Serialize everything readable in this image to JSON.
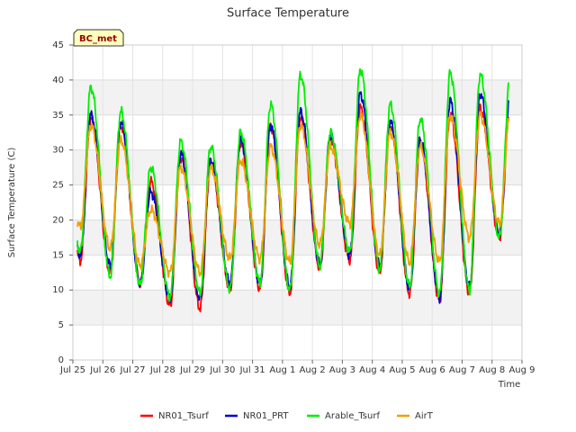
{
  "chart_data": {
    "type": "line",
    "title": "Surface Temperature",
    "xlabel": "Time",
    "ylabel": "Surface Temperature (C)",
    "badge": "BC_met",
    "xlim": [
      "2023-07-25",
      "2023-08-09"
    ],
    "ylim": [
      0,
      45
    ],
    "yticks": [
      0,
      5,
      10,
      15,
      20,
      25,
      30,
      35,
      40,
      45
    ],
    "xtick_labels": [
      "Jul 25",
      "Jul 26",
      "Jul 27",
      "Jul 28",
      "Jul 29",
      "Jul 30",
      "Jul 31",
      "Aug 1",
      "Aug 2",
      "Aug 3",
      "Aug 4",
      "Aug 5",
      "Aug 6",
      "Aug 7",
      "Aug 8",
      "Aug 9"
    ],
    "grid": true,
    "legend_position": "bottom",
    "days": [
      "Jul 25",
      "Jul 26",
      "Jul 27",
      "Jul 28",
      "Jul 29",
      "Jul 30",
      "Jul 31",
      "Aug 1",
      "Aug 2",
      "Aug 3",
      "Aug 4",
      "Aug 5",
      "Aug 6",
      "Aug 7",
      "Aug 8"
    ],
    "series": [
      {
        "name": "NR01_Tsurf",
        "color": "#ff0000",
        "daily_min": [
          14.2,
          12.5,
          11.0,
          7.8,
          7.4,
          10.2,
          10.2,
          9.6,
          13.2,
          14.3,
          12.6,
          9.5,
          8.5,
          9.6,
          17.5
        ],
        "daily_max": [
          34.5,
          33.5,
          25.5,
          29.0,
          28.0,
          31.0,
          33.5,
          34.5,
          31.5,
          36.0,
          33.5,
          31.0,
          35.0,
          36.0
        ]
      },
      {
        "name": "NR01_PRT",
        "color": "#0000cc",
        "daily_min": [
          15.0,
          13.5,
          11.0,
          8.8,
          8.8,
          11.0,
          11.0,
          10.5,
          13.8,
          15.0,
          13.5,
          10.2,
          9.0,
          10.5,
          18.0
        ],
        "daily_max": [
          35.0,
          34.0,
          24.0,
          29.5,
          28.5,
          31.5,
          33.5,
          35.5,
          32.0,
          38.0,
          34.0,
          31.5,
          37.0,
          38.0
        ]
      },
      {
        "name": "Arable_Tsurf",
        "color": "#00ee00",
        "daily_min": [
          15.5,
          12.0,
          10.8,
          9.0,
          9.5,
          10.2,
          11.0,
          10.0,
          13.5,
          15.5,
          13.0,
          10.5,
          9.5,
          10.0,
          17.5
        ],
        "daily_max": [
          39.0,
          35.5,
          27.5,
          31.2,
          30.5,
          32.5,
          36.5,
          40.7,
          32.5,
          41.5,
          36.5,
          34.5,
          41.0,
          40.7
        ]
      },
      {
        "name": "AirT",
        "color": "#f0a000",
        "daily_min": [
          19.0,
          16.0,
          13.5,
          12.5,
          12.5,
          14.5,
          14.5,
          14.0,
          16.5,
          19.5,
          15.0,
          14.0,
          14.0,
          17.5,
          19.5
        ],
        "daily_max": [
          33.5,
          31.5,
          21.5,
          27.5,
          27.5,
          28.5,
          30.5,
          33.5,
          30.5,
          35.0,
          32.5,
          30.5,
          35.0,
          35.0
        ]
      }
    ]
  }
}
